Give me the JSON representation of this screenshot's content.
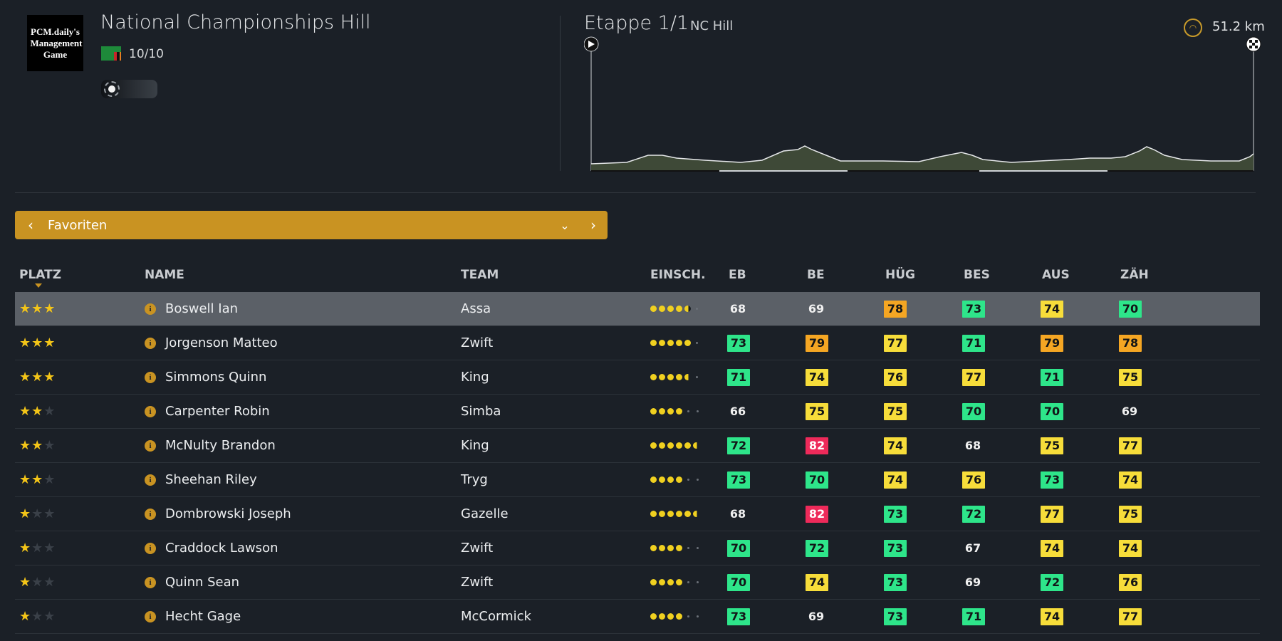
{
  "header": {
    "logo_text": "PCM.daily's Management Game",
    "race_title": "National Championships Hill",
    "favorites_count": "10/10",
    "flag_colors": [
      "#1e8a3a",
      "#c62828",
      "#111111",
      "#e67e22"
    ]
  },
  "stage": {
    "title": "Etappe 1/1",
    "subtitle": "NC Hill",
    "distance": "51.2 km"
  },
  "filter": {
    "label": "Favoriten",
    "prev_icon": "‹",
    "next_icon": "›",
    "dropdown_icon": "⌄"
  },
  "columns": {
    "platz": "PLATZ",
    "name": "NAME",
    "team": "TEAM",
    "einsch": "EINSCH.",
    "eb": "EB",
    "be": "BE",
    "hug": "HÜG",
    "bes": "BES",
    "aus": "AUS",
    "zah": "ZÄH"
  },
  "colors": {
    "accent": "#c99322",
    "green": "#2ee58a",
    "yellow": "#f7dd3a",
    "orange": "#f5a623",
    "red": "#ee2a5a",
    "background": "#1b2027"
  },
  "riders": [
    {
      "stars": 3,
      "name": "Boswell Ian",
      "team": "Assa",
      "form": 4.5,
      "stats": [
        {
          "v": "68",
          "c": ""
        },
        {
          "v": "69",
          "c": ""
        },
        {
          "v": "78",
          "c": "o"
        },
        {
          "v": "73",
          "c": "g"
        },
        {
          "v": "74",
          "c": "y"
        },
        {
          "v": "70",
          "c": "g"
        }
      ]
    },
    {
      "stars": 3,
      "name": "Jorgenson Matteo",
      "team": "Zwift",
      "form": 5,
      "stats": [
        {
          "v": "73",
          "c": "g"
        },
        {
          "v": "79",
          "c": "o"
        },
        {
          "v": "77",
          "c": "y"
        },
        {
          "v": "71",
          "c": "g"
        },
        {
          "v": "79",
          "c": "o"
        },
        {
          "v": "78",
          "c": "o"
        }
      ]
    },
    {
      "stars": 3,
      "name": "Simmons Quinn",
      "team": "King",
      "form": 4.5,
      "stats": [
        {
          "v": "71",
          "c": "g"
        },
        {
          "v": "74",
          "c": "y"
        },
        {
          "v": "76",
          "c": "y"
        },
        {
          "v": "77",
          "c": "y"
        },
        {
          "v": "71",
          "c": "g"
        },
        {
          "v": "75",
          "c": "y"
        }
      ]
    },
    {
      "stars": 2,
      "name": "Carpenter Robin",
      "team": "Simba",
      "form": 4,
      "stats": [
        {
          "v": "66",
          "c": ""
        },
        {
          "v": "75",
          "c": "y"
        },
        {
          "v": "75",
          "c": "y"
        },
        {
          "v": "70",
          "c": "g"
        },
        {
          "v": "70",
          "c": "g"
        },
        {
          "v": "69",
          "c": ""
        }
      ]
    },
    {
      "stars": 2,
      "name": "McNulty Brandon",
      "team": "King",
      "form": 5.5,
      "stats": [
        {
          "v": "72",
          "c": "g"
        },
        {
          "v": "82",
          "c": "r"
        },
        {
          "v": "74",
          "c": "y"
        },
        {
          "v": "68",
          "c": ""
        },
        {
          "v": "75",
          "c": "y"
        },
        {
          "v": "77",
          "c": "y"
        }
      ]
    },
    {
      "stars": 2,
      "name": "Sheehan Riley",
      "team": "Tryg",
      "form": 4,
      "stats": [
        {
          "v": "73",
          "c": "g"
        },
        {
          "v": "70",
          "c": "g"
        },
        {
          "v": "74",
          "c": "y"
        },
        {
          "v": "76",
          "c": "y"
        },
        {
          "v": "73",
          "c": "g"
        },
        {
          "v": "74",
          "c": "y"
        }
      ]
    },
    {
      "stars": 1,
      "name": "Dombrowski Joseph",
      "team": "Gazelle",
      "form": 5.5,
      "stats": [
        {
          "v": "68",
          "c": ""
        },
        {
          "v": "82",
          "c": "r"
        },
        {
          "v": "73",
          "c": "g"
        },
        {
          "v": "72",
          "c": "g"
        },
        {
          "v": "77",
          "c": "y"
        },
        {
          "v": "75",
          "c": "y"
        }
      ]
    },
    {
      "stars": 1,
      "name": "Craddock Lawson",
      "team": "Zwift",
      "form": 4,
      "stats": [
        {
          "v": "70",
          "c": "g"
        },
        {
          "v": "72",
          "c": "g"
        },
        {
          "v": "73",
          "c": "g"
        },
        {
          "v": "67",
          "c": ""
        },
        {
          "v": "74",
          "c": "y"
        },
        {
          "v": "74",
          "c": "y"
        }
      ]
    },
    {
      "stars": 1,
      "name": "Quinn Sean",
      "team": "Zwift",
      "form": 4,
      "stats": [
        {
          "v": "70",
          "c": "g"
        },
        {
          "v": "74",
          "c": "y"
        },
        {
          "v": "73",
          "c": "g"
        },
        {
          "v": "69",
          "c": ""
        },
        {
          "v": "72",
          "c": "g"
        },
        {
          "v": "76",
          "c": "y"
        }
      ]
    },
    {
      "stars": 1,
      "name": "Hecht Gage",
      "team": "McCormick",
      "form": 4,
      "stats": [
        {
          "v": "73",
          "c": "g"
        },
        {
          "v": "69",
          "c": ""
        },
        {
          "v": "73",
          "c": "g"
        },
        {
          "v": "71",
          "c": "g"
        },
        {
          "v": "74",
          "c": "y"
        },
        {
          "v": "77",
          "c": "y"
        }
      ]
    }
  ]
}
